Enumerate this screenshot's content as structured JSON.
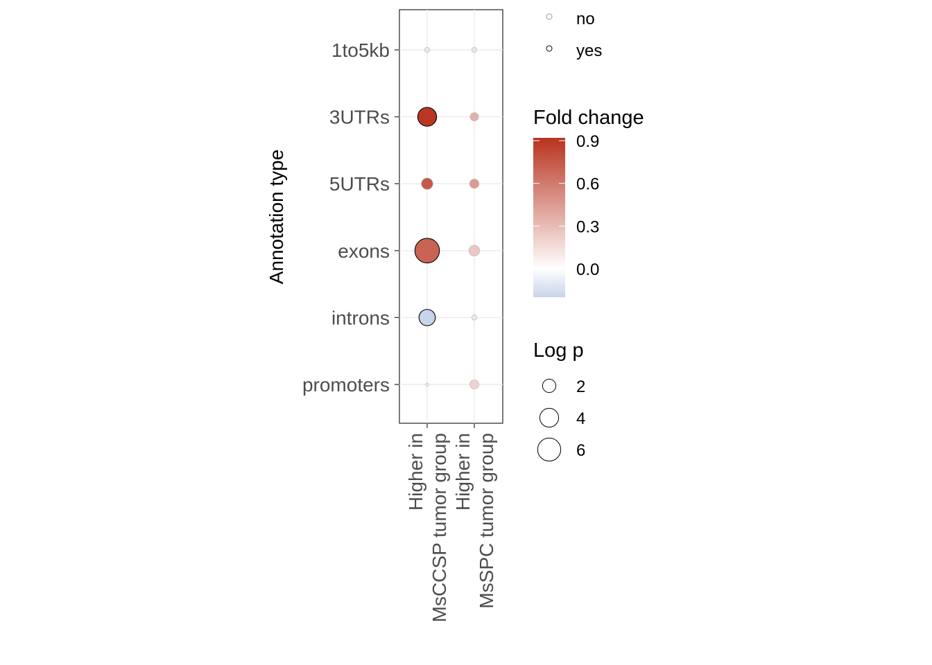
{
  "chart_data": {
    "type": "dot",
    "ylabel": "Annotation type",
    "xlabel": "",
    "categories_y": [
      "1to5kb",
      "3UTRs",
      "5UTRs",
      "exons",
      "introns",
      "promoters"
    ],
    "categories_x": [
      [
        "Higher in",
        "MsCCSP tumor group"
      ],
      [
        "Higher in",
        "MsSPC tumor group"
      ]
    ],
    "points": [
      {
        "y": "1to5kb",
        "x": 0,
        "fold_change": -0.1,
        "log_p": 0.3,
        "significant": "no"
      },
      {
        "y": "1to5kb",
        "x": 1,
        "fold_change": -0.1,
        "log_p": 0.3,
        "significant": "no"
      },
      {
        "y": "3UTRs",
        "x": 0,
        "fold_change": 0.9,
        "log_p": 4.0,
        "significant": "yes"
      },
      {
        "y": "3UTRs",
        "x": 1,
        "fold_change": 0.35,
        "log_p": 0.8,
        "significant": "no"
      },
      {
        "y": "5UTRs",
        "x": 0,
        "fold_change": 0.75,
        "log_p": 1.5,
        "significant": "no"
      },
      {
        "y": "5UTRs",
        "x": 1,
        "fold_change": 0.45,
        "log_p": 1.0,
        "significant": "no"
      },
      {
        "y": "exons",
        "x": 0,
        "fold_change": 0.7,
        "log_p": 6.8,
        "significant": "yes"
      },
      {
        "y": "exons",
        "x": 1,
        "fold_change": 0.25,
        "log_p": 1.3,
        "significant": "no"
      },
      {
        "y": "introns",
        "x": 0,
        "fold_change": -0.2,
        "log_p": 3.0,
        "significant": "yes"
      },
      {
        "y": "introns",
        "x": 1,
        "fold_change": -0.1,
        "log_p": 0.3,
        "significant": "no"
      },
      {
        "y": "promoters",
        "x": 0,
        "fold_change": 0.1,
        "log_p": 0.1,
        "significant": "no"
      },
      {
        "y": "promoters",
        "x": 1,
        "fold_change": 0.2,
        "log_p": 0.9,
        "significant": "no"
      }
    ],
    "legend_significance": {
      "title": "",
      "entries": [
        "no",
        "yes"
      ]
    },
    "legend_color": {
      "title": "Fold change",
      "ticks": [
        "0.9",
        "0.6",
        "0.3",
        "0.0"
      ],
      "tick_values": [
        0.9,
        0.6,
        0.3,
        0.0
      ],
      "range": [
        -0.2,
        0.92
      ],
      "colors": {
        "low": "#c8d4ea",
        "mid": "#ffffff",
        "high": "#b8331f"
      }
    },
    "legend_size": {
      "title": "Log p",
      "entries": [
        "2",
        "4",
        "6"
      ],
      "values": [
        2,
        4,
        6
      ]
    }
  }
}
